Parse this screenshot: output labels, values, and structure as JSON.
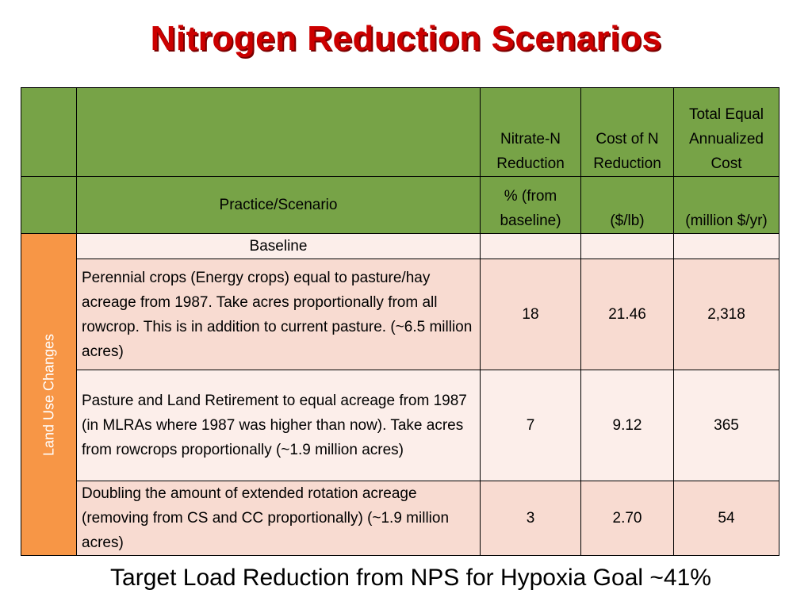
{
  "title": "Nitrogen Reduction Scenarios",
  "table": {
    "headers_top": {
      "col1": "",
      "col2": "",
      "col3": "Nitrate-N Reduction",
      "col4": "Cost of N Reduction",
      "col5": "Total Equal Annualized Cost"
    },
    "headers_bottom": {
      "col1": "",
      "col2": "Practice/Scenario",
      "col3": "% (from baseline)",
      "col4": "($/lb)",
      "col5": "(million $/yr)"
    },
    "side_label": "Land Use Changes",
    "rows": [
      {
        "scenario": "Baseline",
        "reduction": "",
        "cost": "",
        "total": ""
      },
      {
        "scenario": "Perennial crops (Energy crops) equal to pasture/hay acreage from 1987. Take acres proportionally from all rowcrop. This is in addition to current pasture. (~6.5 million acres)",
        "reduction": "18",
        "cost": "21.46",
        "total": "2,318"
      },
      {
        "scenario": "Pasture and Land Retirement to equal acreage from 1987 (in MLRAs where 1987 was higher than now). Take acres from rowcrops proportionally (~1.9 million acres)",
        "reduction": "7",
        "cost": "9.12",
        "total": "365"
      },
      {
        "scenario": "Doubling the amount of extended rotation acreage (removing from CS and CC proportionally) (~1.9 million acres)",
        "reduction": "3",
        "cost": "2.70",
        "total": "54"
      }
    ]
  },
  "footer": "Target Load Reduction from NPS for Hypoxia Goal ~41%",
  "colors": {
    "title": "#cc0000",
    "header_bg": "#77a347",
    "side_bg": "#f79646",
    "row_pink": "#f8dbd1",
    "row_light": "#fceeea"
  }
}
